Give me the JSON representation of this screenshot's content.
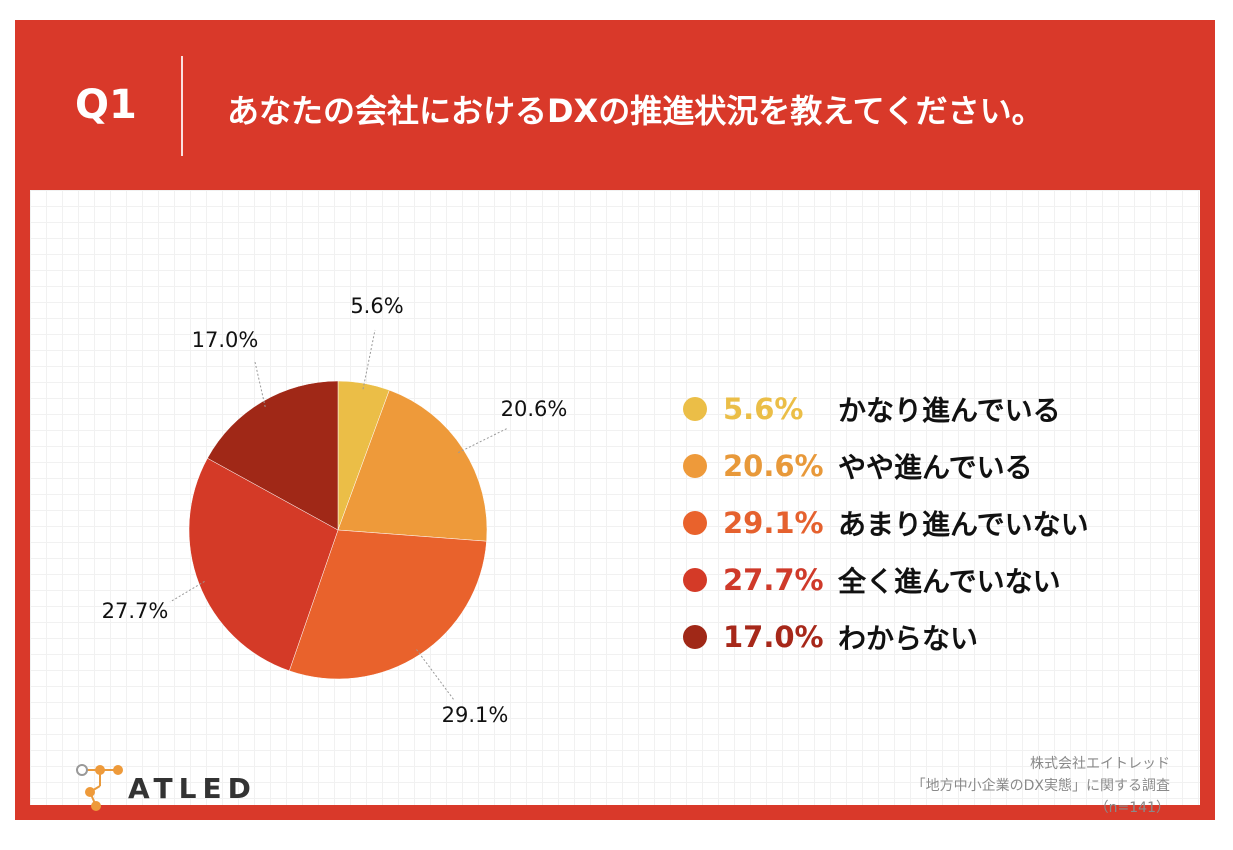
{
  "header": {
    "q_number": "Q1",
    "title": "あなたの会社におけるDXの推進状況を教えてください。"
  },
  "chart_data": {
    "type": "pie",
    "title": "",
    "slices": [
      {
        "label": "かなり進んでいる",
        "value": 5.6,
        "pct_label": "5.6%",
        "color": "#ebbe47"
      },
      {
        "label": "やや進んでいる",
        "value": 20.6,
        "pct_label": "20.6%",
        "color": "#ee9a3a"
      },
      {
        "label": "あまり進んでいない",
        "value": 29.1,
        "pct_label": "29.1%",
        "color": "#e9622c"
      },
      {
        "label": "全く進んでいない",
        "value": 27.7,
        "pct_label": "27.7%",
        "color": "#d43a27"
      },
      {
        "label": "わからない",
        "value": 17.0,
        "pct_label": "17.0%",
        "color": "#a02817"
      }
    ],
    "legend_position": "right"
  },
  "colors": {
    "frame": "#d9392a",
    "legend_pct": [
      "#ebbe47",
      "#e8993a",
      "#e5612e",
      "#cf3a2a",
      "#a7281a"
    ]
  },
  "logo": {
    "text": "ATLED"
  },
  "source": {
    "company": "株式会社エイトレッド",
    "survey": "「地方中小企業のDX実態」に関する調査",
    "n": "（n=141）"
  }
}
